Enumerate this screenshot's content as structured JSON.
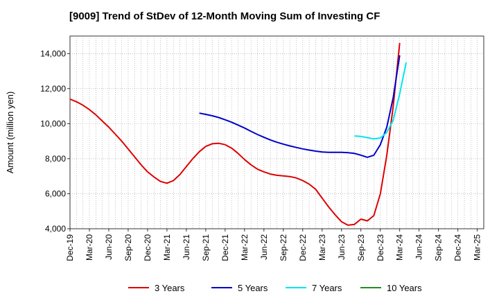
{
  "chart_data": {
    "type": "line",
    "title": "[9009]  Trend of StDev of 12-Month Moving Sum of Investing CF",
    "xlabel": "",
    "ylabel": "Amount (million yen)",
    "ylim": [
      4000,
      15000
    ],
    "yticks": [
      4000,
      6000,
      8000,
      10000,
      12000,
      14000
    ],
    "ytick_labels": [
      "4,000",
      "6,000",
      "8,000",
      "10,000",
      "12,000",
      "14,000"
    ],
    "x_start": "Dec-19",
    "x_months": 64,
    "xtick_labels": [
      "Dec-19",
      "Mar-20",
      "Jun-20",
      "Sep-20",
      "Dec-20",
      "Mar-21",
      "Jun-21",
      "Sep-21",
      "Dec-21",
      "Mar-22",
      "Jun-22",
      "Sep-22",
      "Dec-22",
      "Mar-23",
      "Jun-23",
      "Sep-23",
      "Dec-23",
      "Mar-24",
      "Jun-24",
      "Sep-24",
      "Dec-24",
      "Mar-25"
    ],
    "grid": true,
    "legend_position": "bottom",
    "series": [
      {
        "name": "3 Years",
        "color": "#dd0000",
        "start_index": 0,
        "values": [
          11400,
          11250,
          11050,
          10800,
          10500,
          10150,
          9800,
          9400,
          9000,
          8550,
          8100,
          7650,
          7250,
          6950,
          6700,
          6600,
          6750,
          7100,
          7550,
          8000,
          8400,
          8700,
          8850,
          8880,
          8800,
          8600,
          8300,
          7950,
          7650,
          7400,
          7250,
          7120,
          7050,
          7020,
          6980,
          6900,
          6750,
          6550,
          6250,
          5750,
          5250,
          4800,
          4400,
          4200,
          4250,
          4550,
          4450,
          4750,
          6000,
          8200,
          11000,
          14600
        ]
      },
      {
        "name": "5 Years",
        "color": "#0000cc",
        "start_index": 20,
        "values": [
          10600,
          10530,
          10450,
          10350,
          10220,
          10080,
          9920,
          9750,
          9560,
          9380,
          9220,
          9070,
          8940,
          8830,
          8730,
          8640,
          8560,
          8490,
          8430,
          8380,
          8360,
          8360,
          8360,
          8340,
          8300,
          8200,
          8080,
          8200,
          8800,
          9800,
          11500,
          13900
        ]
      },
      {
        "name": "7 Years",
        "color": "#00e5ee",
        "start_index": 44,
        "values": [
          9300,
          9270,
          9200,
          9130,
          9180,
          9500,
          10200,
          11700,
          13500
        ]
      },
      {
        "name": "10 Years",
        "color": "#228b22",
        "start_index": 0,
        "values": []
      }
    ]
  }
}
